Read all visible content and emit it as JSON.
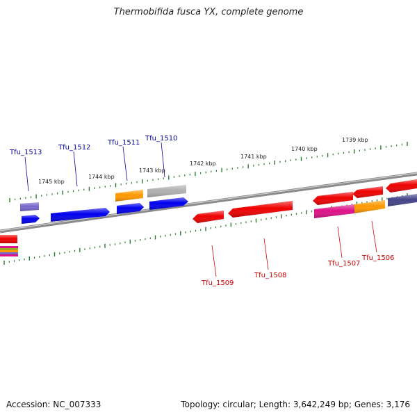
{
  "title": "Thermobifida fusca YX, complete genome",
  "footer": {
    "accession": "Accession: NC_007333",
    "summary": "Topology: circular; Length: 3,642,249 bp; Genes: 3,176"
  },
  "scale_labels": [
    "1745 kbp",
    "1744 kbp",
    "1743 kbp",
    "1742 kbp",
    "1741 kbp",
    "1740 kbp",
    "1739 kbp"
  ],
  "gene_labels_forward": [
    "Tfu_1513",
    "Tfu_1512",
    "Tfu_1511",
    "Tfu_1510"
  ],
  "gene_labels_reverse": [
    "Tfu_1509",
    "Tfu_1508",
    "Tfu_1507",
    "Tfu_1506"
  ],
  "colors": {
    "backbone": "#808080",
    "tick": "#2a7a2a",
    "forward_label": "#000099",
    "reverse_label": "#cc0000",
    "gene_blue": "#0000ee",
    "gene_orange": "#ff9900",
    "gene_gray": "#b0b0b0",
    "gene_purple": "#7766cc",
    "gene_red": "#ee0000",
    "gene_magenta": "#dd1188",
    "gene_navy": "#44448a"
  }
}
